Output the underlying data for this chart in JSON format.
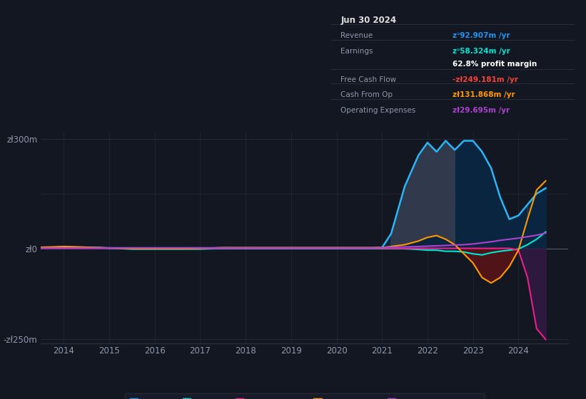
{
  "bg_color": "#131722",
  "plot_bg_color": "#131722",
  "grid_color": "#2a2e39",
  "zero_line_color": "#555a66",
  "title_box": {
    "date": "Jun 30 2024",
    "rows": [
      {
        "label": "Revenue",
        "value": "zᐡ92.907m /yr",
        "value_color": "#2196f3"
      },
      {
        "label": "Earnings",
        "value": "zᐡ58.324m /yr",
        "value_color": "#00e5d4"
      },
      {
        "label": "",
        "value": "62.8% profit margin",
        "value_color": "#ffffff"
      },
      {
        "label": "Free Cash Flow",
        "value": "-zł249.181m /yr",
        "value_color": "#f44336"
      },
      {
        "label": "Cash From Op",
        "value": "zł131.868m /yr",
        "value_color": "#ff9800"
      },
      {
        "label": "Operating Expenses",
        "value": "zł29.695m /yr",
        "value_color": "#aa44cc"
      }
    ]
  },
  "ylim": [
    -260,
    320
  ],
  "xlim": [
    2013.5,
    2025.1
  ],
  "yticks": [
    -250,
    0,
    300
  ],
  "ytick_labels": [
    "-zł250m",
    "zł0",
    "zł300m"
  ],
  "xticks": [
    2014,
    2015,
    2016,
    2017,
    2018,
    2019,
    2020,
    2021,
    2022,
    2023,
    2024
  ],
  "legend": [
    {
      "label": "Revenue",
      "color": "#2196f3",
      "marker": "o"
    },
    {
      "label": "Earnings",
      "color": "#00e5d4",
      "marker": "o"
    },
    {
      "label": "Free Cash Flow",
      "color": "#e91e8c",
      "marker": "o"
    },
    {
      "label": "Cash From Op",
      "color": "#ff9800",
      "marker": "o"
    },
    {
      "label": "Operating Expenses",
      "color": "#aa44cc",
      "marker": "o"
    }
  ],
  "series": {
    "years": [
      2013.5,
      2013.8,
      2014.0,
      2014.3,
      2014.5,
      2014.8,
      2015.0,
      2015.3,
      2015.5,
      2015.8,
      2016.0,
      2016.3,
      2016.5,
      2016.8,
      2017.0,
      2017.3,
      2017.5,
      2017.8,
      2018.0,
      2018.3,
      2018.5,
      2018.8,
      2019.0,
      2019.3,
      2019.5,
      2019.8,
      2020.0,
      2020.3,
      2020.5,
      2020.8,
      2021.0,
      2021.2,
      2021.5,
      2021.8,
      2022.0,
      2022.2,
      2022.4,
      2022.6,
      2022.8,
      2023.0,
      2023.2,
      2023.4,
      2023.6,
      2023.8,
      2024.0,
      2024.2,
      2024.4,
      2024.6
    ],
    "revenue": [
      1,
      1,
      1,
      1,
      1,
      1,
      1,
      1,
      1,
      1,
      1,
      1,
      1,
      1,
      1,
      1,
      1,
      1,
      1,
      1,
      1,
      1,
      1,
      1,
      1,
      1,
      1,
      1,
      1,
      1,
      2,
      40,
      170,
      255,
      290,
      265,
      295,
      270,
      295,
      295,
      265,
      220,
      140,
      80,
      90,
      120,
      150,
      165
    ],
    "earnings": [
      2,
      3,
      4,
      3,
      3,
      2,
      0,
      -1,
      -2,
      -2,
      -2,
      -2,
      -2,
      -2,
      -2,
      -1,
      -1,
      -1,
      -1,
      -1,
      -1,
      -1,
      -1,
      -1,
      -1,
      -1,
      -1,
      -1,
      -1,
      -1,
      -1,
      -1,
      -1,
      -3,
      -5,
      -5,
      -8,
      -8,
      -10,
      -15,
      -18,
      -12,
      -8,
      -5,
      -2,
      10,
      25,
      45
    ],
    "free_cash_flow": [
      0,
      0,
      0,
      0,
      0,
      0,
      0,
      0,
      0,
      0,
      0,
      0,
      0,
      0,
      0,
      0,
      0,
      0,
      0,
      0,
      0,
      0,
      0,
      0,
      0,
      0,
      0,
      0,
      0,
      0,
      0,
      0,
      0,
      0,
      0,
      0,
      0,
      0,
      0,
      0,
      0,
      0,
      0,
      0,
      -5,
      -80,
      -220,
      -250
    ],
    "cash_from_op": [
      3,
      4,
      5,
      4,
      3,
      2,
      1,
      0,
      -1,
      -1,
      -1,
      -1,
      -1,
      -1,
      0,
      1,
      2,
      2,
      2,
      2,
      2,
      2,
      2,
      2,
      2,
      2,
      2,
      2,
      2,
      2,
      2,
      5,
      10,
      20,
      30,
      35,
      25,
      10,
      -15,
      -40,
      -80,
      -95,
      -80,
      -50,
      -5,
      80,
      160,
      185
    ],
    "operating_expenses": [
      1,
      1,
      1,
      1,
      1,
      1,
      1,
      1,
      1,
      1,
      1,
      1,
      1,
      1,
      1,
      1,
      1,
      1,
      1,
      1,
      1,
      1,
      1,
      1,
      1,
      1,
      1,
      1,
      1,
      1,
      2,
      3,
      4,
      5,
      6,
      7,
      8,
      9,
      10,
      12,
      15,
      18,
      22,
      25,
      28,
      32,
      36,
      42
    ]
  },
  "revenue_fill_color": "#0a2744",
  "revenue_fill_alpha": 0.9,
  "revenue_line_color": "#29b6f6",
  "earnings_color": "#00e5d4",
  "fcf_color": "#e91e8c",
  "cashop_color": "#ff9800",
  "opex_color": "#aa44cc",
  "red_fill_color": "#6b1414",
  "red_fill_alpha": 0.7,
  "gray_fill_color": "#3a4050",
  "gray_fill_alpha": 0.8
}
